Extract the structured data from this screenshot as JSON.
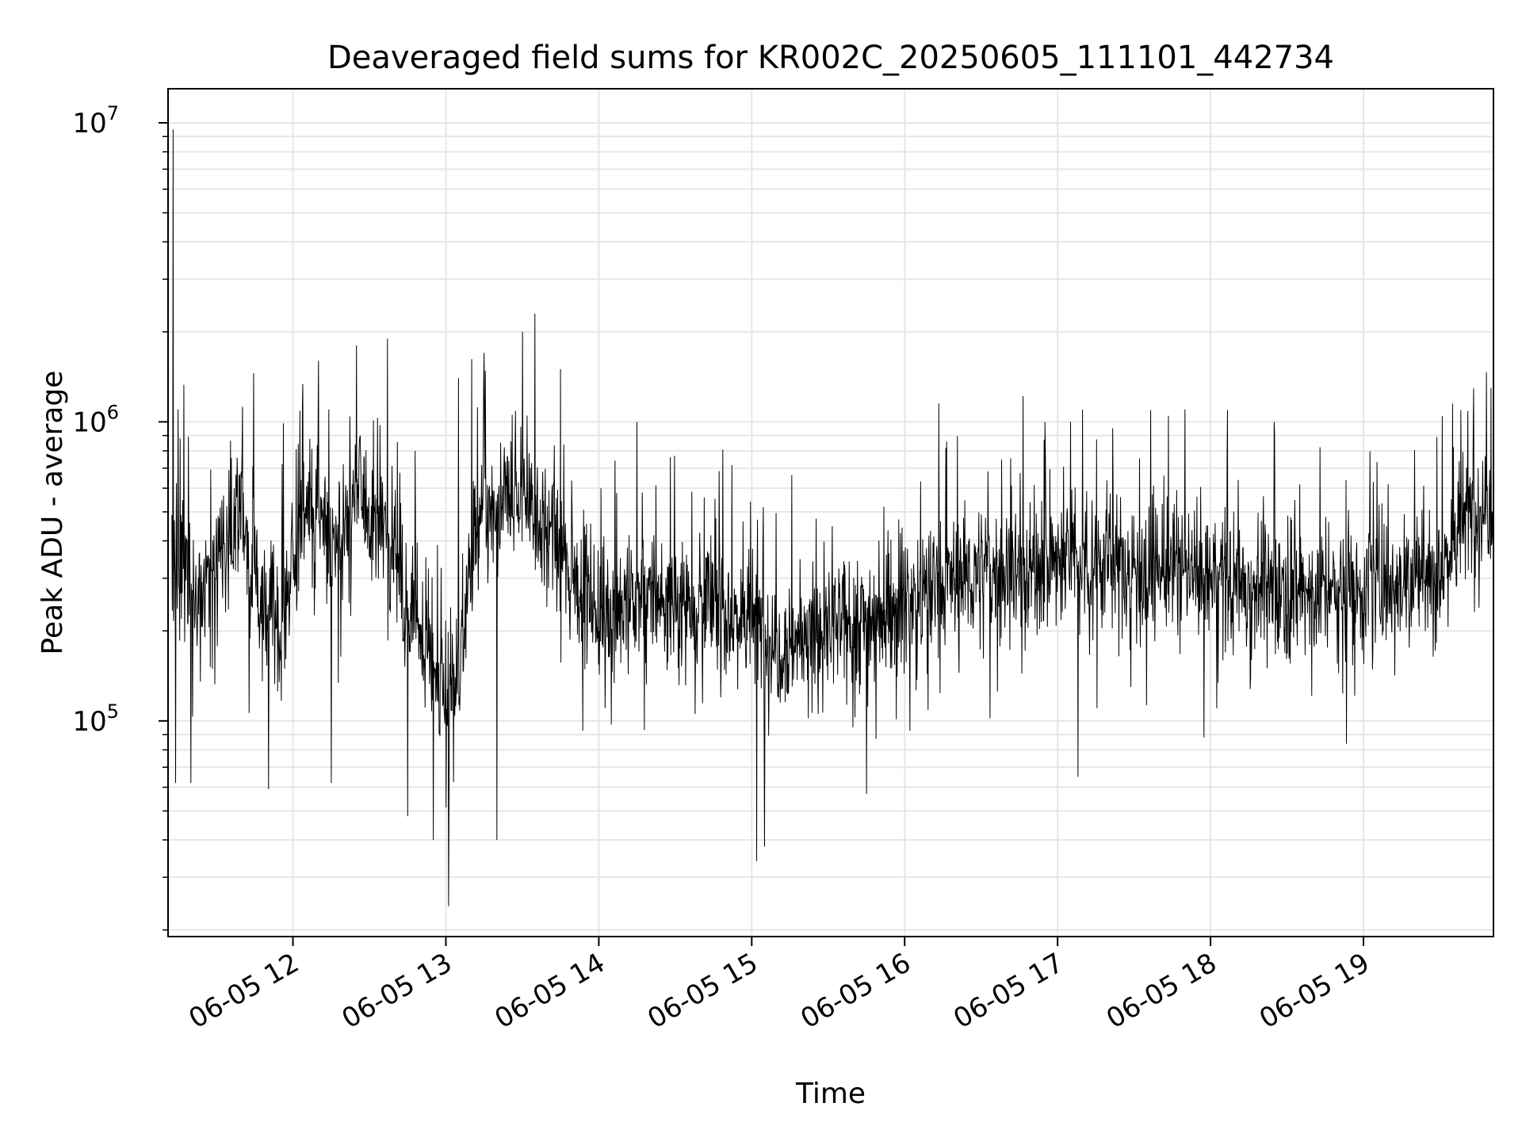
{
  "chart_data": {
    "type": "line",
    "title": "Deaveraged field sums for KR002C_20250605_111101_442734",
    "xlabel": "Time",
    "ylabel": "Peak ADU - average",
    "yscale": "log",
    "xlim": [
      "2025-06-05 11:11",
      "2025-06-05 19:51"
    ],
    "ylim": [
      19000,
      13000000
    ],
    "grid": true,
    "x_ticks": [
      "06-05 12",
      "06-05 13",
      "06-05 14",
      "06-05 15",
      "06-05 16",
      "06-05 17",
      "06-05 18",
      "06-05 19"
    ],
    "y_ticks": [
      {
        "base": "10",
        "exp": "5",
        "value": 100000
      },
      {
        "base": "10",
        "exp": "6",
        "value": 1000000
      },
      {
        "base": "10",
        "exp": "7",
        "value": 10000000
      }
    ],
    "series": [
      {
        "color": "#000000",
        "note_values_in": "ADU",
        "x": [
          "11:11",
          "11:15",
          "11:20",
          "11:25",
          "11:30",
          "11:35",
          "11:40",
          "11:45",
          "11:50",
          "11:55",
          "12:00",
          "12:05",
          "12:10",
          "12:15",
          "12:20",
          "12:25",
          "12:30",
          "12:35",
          "12:40",
          "12:45",
          "12:50",
          "12:55",
          "13:00",
          "13:05",
          "13:10",
          "13:15",
          "13:20",
          "13:25",
          "13:30",
          "13:35",
          "13:40",
          "13:45",
          "13:50",
          "13:55",
          "14:00",
          "14:10",
          "14:20",
          "14:30",
          "14:40",
          "14:50",
          "15:00",
          "15:10",
          "15:20",
          "15:30",
          "15:40",
          "15:50",
          "16:00",
          "16:10",
          "16:20",
          "16:30",
          "16:40",
          "16:50",
          "17:00",
          "17:10",
          "17:20",
          "17:30",
          "17:40",
          "17:50",
          "18:00",
          "18:10",
          "18:20",
          "18:30",
          "18:40",
          "18:50",
          "19:00",
          "19:10",
          "19:20",
          "19:30",
          "19:40",
          "19:50"
        ],
        "values": [
          400000,
          350000,
          300000,
          260000,
          320000,
          450000,
          500000,
          300000,
          200000,
          220000,
          300000,
          550000,
          450000,
          400000,
          450000,
          600000,
          500000,
          450000,
          400000,
          250000,
          200000,
          150000,
          120000,
          150000,
          350000,
          500000,
          450000,
          550000,
          600000,
          500000,
          420000,
          350000,
          300000,
          280000,
          230000,
          240000,
          260000,
          250000,
          260000,
          230000,
          220000,
          180000,
          190000,
          200000,
          210000,
          230000,
          250000,
          270000,
          300000,
          310000,
          320000,
          320000,
          340000,
          350000,
          340000,
          330000,
          320000,
          310000,
          300000,
          290000,
          280000,
          280000,
          270000,
          270000,
          280000,
          300000,
          300000,
          320000,
          480000,
          550000
        ],
        "peaks": [
          {
            "x": "11:13",
            "value": 9500000
          },
          {
            "x": "11:15",
            "value": 1100000
          },
          {
            "x": "11:40",
            "value": 800000
          },
          {
            "x": "12:10",
            "value": 1600000
          },
          {
            "x": "12:25",
            "value": 1800000
          },
          {
            "x": "12:37",
            "value": 1900000
          },
          {
            "x": "12:48",
            "value": 800000
          },
          {
            "x": "13:05",
            "value": 1400000
          },
          {
            "x": "13:15",
            "value": 1700000
          },
          {
            "x": "13:30",
            "value": 2000000
          },
          {
            "x": "13:35",
            "value": 2300000
          },
          {
            "x": "13:45",
            "value": 1500000
          },
          {
            "x": "14:15",
            "value": 1000000
          },
          {
            "x": "15:05",
            "value": 500000
          },
          {
            "x": "16:55",
            "value": 1000000
          },
          {
            "x": "17:05",
            "value": 1000000
          },
          {
            "x": "17:50",
            "value": 1100000
          },
          {
            "x": "18:25",
            "value": 1000000
          },
          {
            "x": "19:35",
            "value": 1150000
          },
          {
            "x": "19:50",
            "value": 1300000
          }
        ],
        "dips": [
          {
            "x": "11:14",
            "value": 62000
          },
          {
            "x": "11:20",
            "value": 62000
          },
          {
            "x": "12:15",
            "value": 62000
          },
          {
            "x": "12:45",
            "value": 48000
          },
          {
            "x": "12:55",
            "value": 40000
          },
          {
            "x": "13:01",
            "value": 24000
          },
          {
            "x": "13:20",
            "value": 40000
          },
          {
            "x": "15:02",
            "value": 34000
          },
          {
            "x": "15:05",
            "value": 38000
          },
          {
            "x": "15:45",
            "value": 57000
          },
          {
            "x": "17:08",
            "value": 65000
          }
        ]
      }
    ]
  }
}
